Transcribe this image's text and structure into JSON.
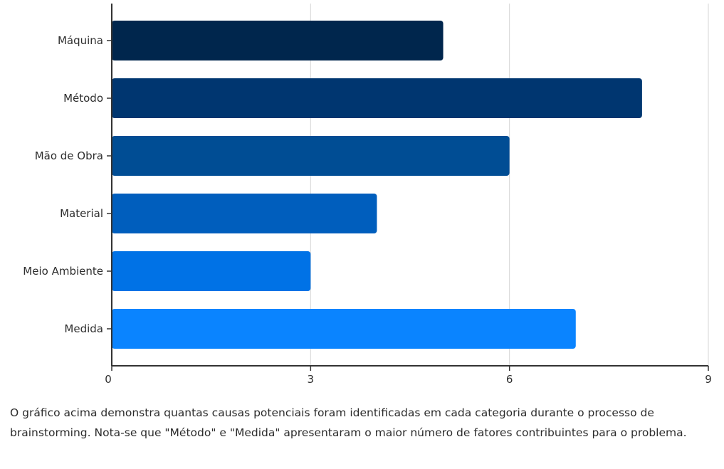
{
  "chart_data": {
    "type": "bar",
    "orientation": "horizontal",
    "categories": [
      "Máquina",
      "Método",
      "Mão de Obra",
      "Material",
      "Meio Ambiente",
      "Medida"
    ],
    "values": [
      5,
      8,
      6,
      4,
      3,
      7
    ],
    "xlim": [
      0,
      9
    ],
    "xticks": [
      "0",
      "3",
      "6",
      "9"
    ],
    "grid": "vertical",
    "colors": [
      "#00264d",
      "#003670",
      "#004d94",
      "#005ebd",
      "#0072e6",
      "#0a84ff"
    ]
  },
  "caption": "O gráfico acima demonstra quantas causas potenciais foram identificadas em cada categoria durante o processo de brainstorming. Nota-se que \"Método\" e \"Medida\" apresentaram o maior número de fatores contribuintes para o problema."
}
